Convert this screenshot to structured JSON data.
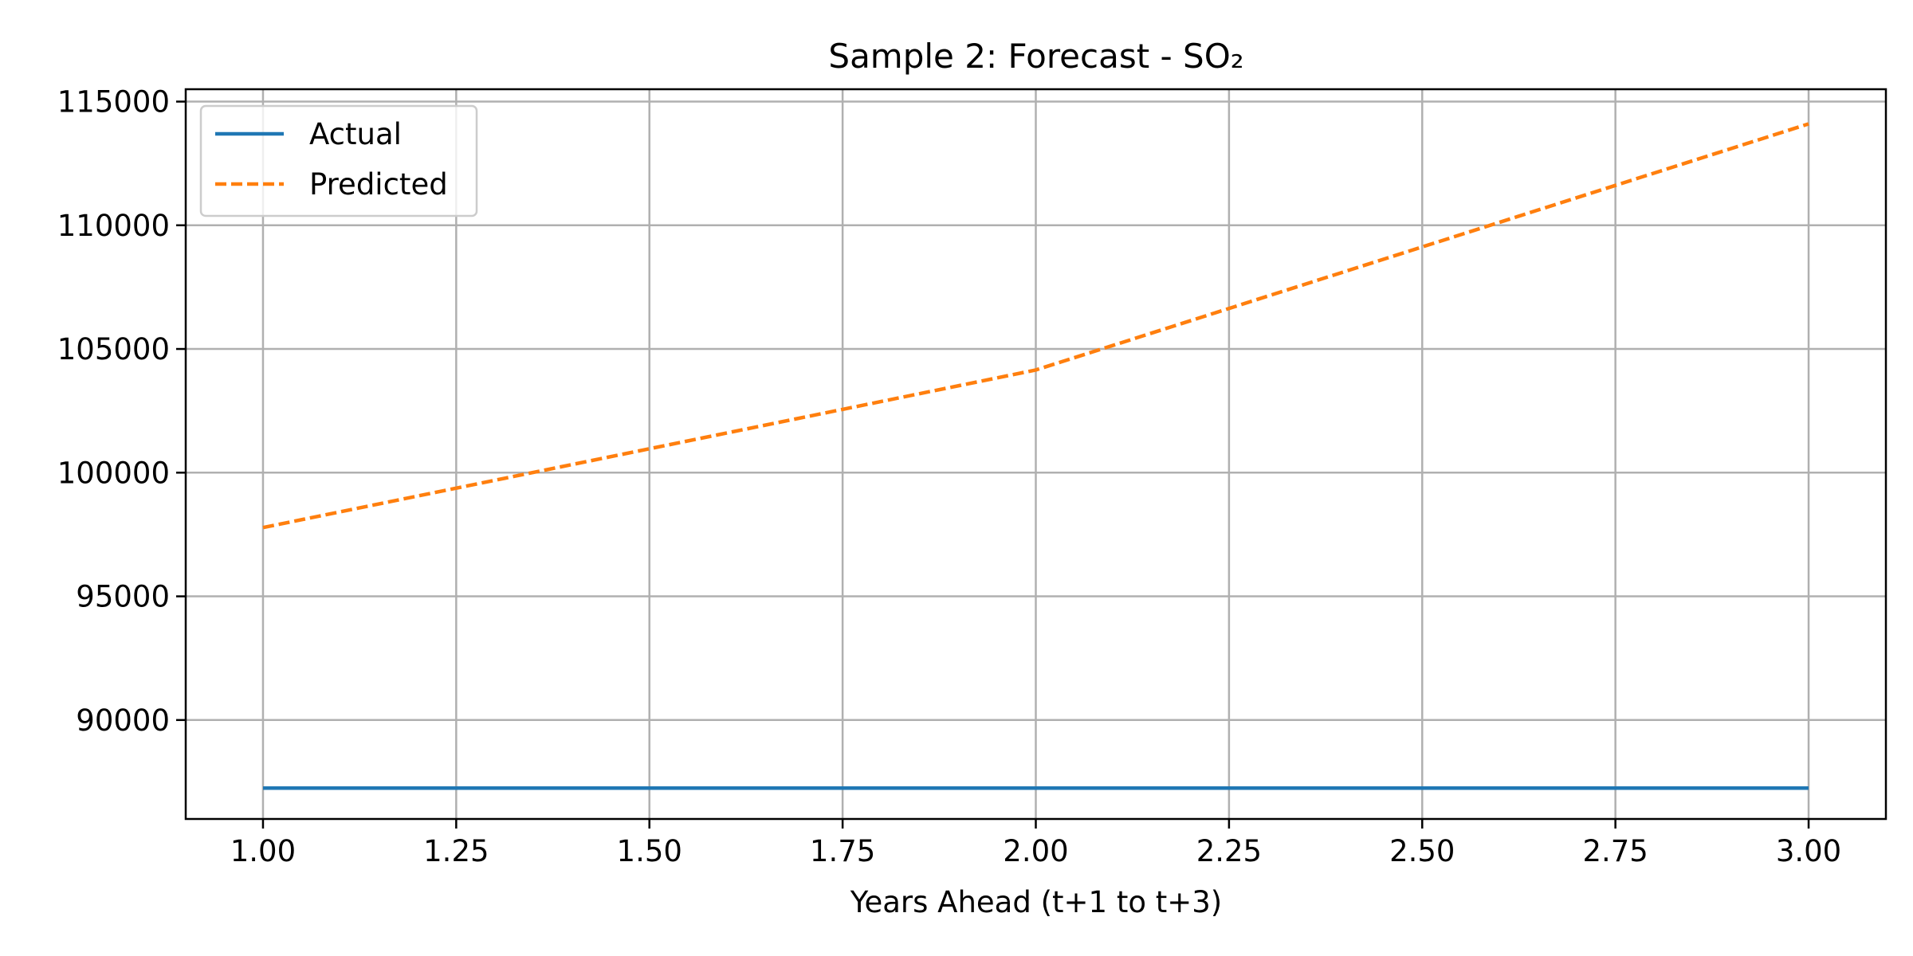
{
  "chart_data": {
    "type": "line",
    "title": "Sample 2: Forecast - SO₂",
    "xlabel": "Years Ahead (t+1 to t+3)",
    "ylabel": "",
    "xlim": [
      0.9,
      3.1
    ],
    "ylim": [
      86000,
      115500
    ],
    "x_ticks": [
      1.0,
      1.25,
      1.5,
      1.75,
      2.0,
      2.25,
      2.5,
      2.75,
      3.0
    ],
    "x_tick_labels": [
      "1.00",
      "1.25",
      "1.50",
      "1.75",
      "2.00",
      "2.25",
      "2.50",
      "2.75",
      "3.00"
    ],
    "y_ticks": [
      90000,
      95000,
      100000,
      105000,
      110000,
      115000
    ],
    "y_tick_labels": [
      "90000",
      "95000",
      "100000",
      "105000",
      "110000",
      "115000"
    ],
    "grid": true,
    "legend_position": "top-left",
    "series": [
      {
        "name": "Actual",
        "x": [
          1,
          2,
          3
        ],
        "values": [
          87250,
          87250,
          87250
        ],
        "color": "#1f77b4",
        "style": "solid"
      },
      {
        "name": "Predicted",
        "x": [
          1,
          2,
          3
        ],
        "values": [
          97780,
          104150,
          114100
        ],
        "color": "#ff7f0e",
        "style": "dashed"
      }
    ]
  }
}
